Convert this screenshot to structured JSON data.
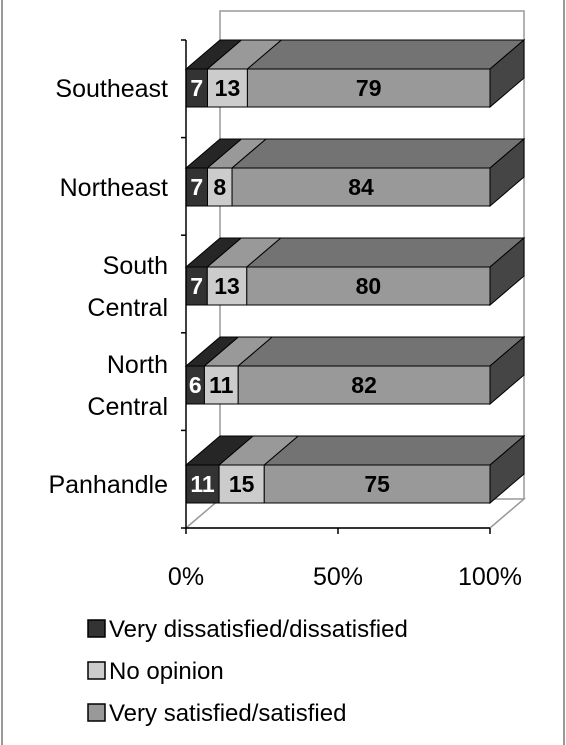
{
  "chart_data": {
    "type": "bar",
    "orientation": "horizontal",
    "stacked": "percent",
    "style": "3d",
    "categories": [
      "Southeast",
      "Northeast",
      "South Central",
      "North Central",
      "Panhandle"
    ],
    "category_lines": [
      [
        "Southeast"
      ],
      [
        "Northeast"
      ],
      [
        "South",
        "Central"
      ],
      [
        "North",
        "Central"
      ],
      [
        "Panhandle"
      ]
    ],
    "series": [
      {
        "name": "Very dissatisfied/dissatisfied",
        "values": [
          7,
          7,
          7,
          6,
          11
        ],
        "color": "#333333"
      },
      {
        "name": "No opinion",
        "values": [
          13,
          8,
          13,
          11,
          15
        ],
        "color": "#cccccc"
      },
      {
        "name": "Very satisfied/satisfied",
        "values": [
          79,
          84,
          80,
          82,
          75
        ],
        "color": "#999999"
      }
    ],
    "xaxis": {
      "ticks": [
        0,
        50,
        100
      ],
      "tick_labels": [
        "0%",
        "50%",
        "100%"
      ],
      "xlim": [
        0,
        100
      ]
    },
    "title": "",
    "xlabel": "",
    "ylabel": "",
    "grid": false,
    "legend": "bottom"
  }
}
